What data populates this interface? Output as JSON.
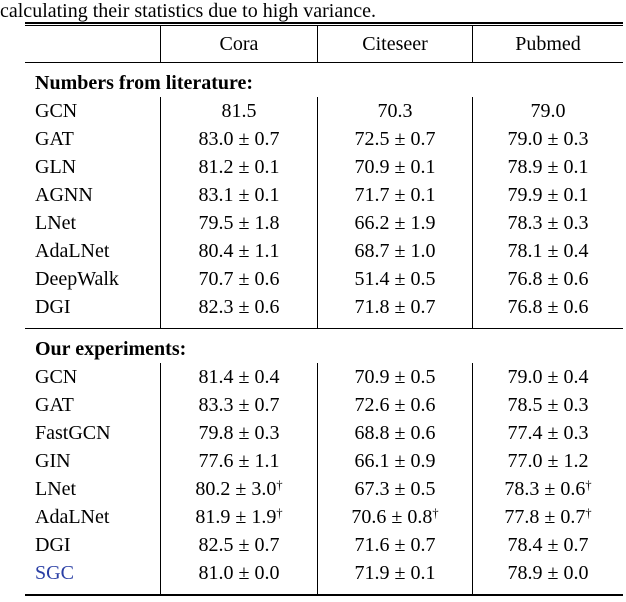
{
  "caption": "calculating their statistics due to high variance.",
  "colors": {
    "text": "#000000",
    "sgc_blue": "#2a3fa5"
  },
  "table": {
    "columns": [
      "Cora",
      "Citeseer",
      "Pubmed"
    ],
    "sections": [
      {
        "header": "Numbers from literature:",
        "rows": [
          {
            "model": "GCN",
            "highlight": false,
            "values": [
              "81.5",
              "70.3",
              "79.0"
            ]
          },
          {
            "model": "GAT",
            "highlight": false,
            "values": [
              "83.0 ± 0.7",
              "72.5 ± 0.7",
              "79.0 ± 0.3"
            ]
          },
          {
            "model": "GLN",
            "highlight": false,
            "values": [
              "81.2 ± 0.1",
              "70.9 ± 0.1",
              "78.9 ± 0.1"
            ]
          },
          {
            "model": "AGNN",
            "highlight": false,
            "values": [
              "83.1 ± 0.1",
              "71.7 ± 0.1",
              "79.9 ± 0.1"
            ]
          },
          {
            "model": "LNet",
            "highlight": false,
            "values": [
              "79.5 ± 1.8",
              "66.2 ± 1.9",
              "78.3 ± 0.3"
            ]
          },
          {
            "model": "AdaLNet",
            "highlight": false,
            "values": [
              "80.4 ± 1.1",
              "68.7 ± 1.0",
              "78.1 ± 0.4"
            ]
          },
          {
            "model": "DeepWalk",
            "highlight": false,
            "values": [
              "70.7 ± 0.6",
              "51.4 ± 0.5",
              "76.8 ± 0.6"
            ]
          },
          {
            "model": "DGI",
            "highlight": false,
            "values": [
              "82.3 ± 0.6",
              "71.8 ± 0.7",
              "76.8 ± 0.6"
            ]
          }
        ]
      },
      {
        "header": "Our experiments:",
        "rows": [
          {
            "model": "GCN",
            "highlight": false,
            "values": [
              "81.4 ± 0.4",
              "70.9 ± 0.5",
              "79.0 ± 0.4"
            ]
          },
          {
            "model": "GAT",
            "highlight": false,
            "values": [
              "83.3 ± 0.7",
              "72.6 ± 0.6",
              "78.5 ± 0.3"
            ]
          },
          {
            "model": "FastGCN",
            "highlight": false,
            "values": [
              "79.8 ± 0.3",
              "68.8 ± 0.6",
              "77.4 ± 0.3"
            ]
          },
          {
            "model": "GIN",
            "highlight": false,
            "values": [
              "77.6 ± 1.1",
              "66.1 ± 0.9",
              "77.0 ± 1.2"
            ]
          },
          {
            "model": "LNet",
            "highlight": false,
            "values": [
              "80.2 ± 3.0†",
              "67.3 ± 0.5",
              "78.3 ± 0.6†"
            ]
          },
          {
            "model": "AdaLNet",
            "highlight": false,
            "values": [
              "81.9 ± 1.9†",
              "70.6 ± 0.8†",
              "77.8 ± 0.7†"
            ]
          },
          {
            "model": "DGI",
            "highlight": false,
            "values": [
              "82.5 ± 0.7",
              "71.6 ± 0.7",
              "78.4 ± 0.7"
            ]
          },
          {
            "model": "SGC",
            "highlight": true,
            "values": [
              "81.0 ± 0.0",
              "71.9 ± 0.1",
              "78.9 ± 0.0"
            ]
          }
        ]
      }
    ]
  }
}
